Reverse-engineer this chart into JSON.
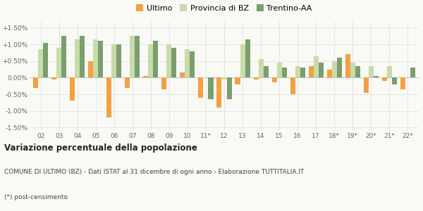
{
  "categories": [
    "02",
    "03",
    "04",
    "05",
    "06",
    "07",
    "08",
    "09",
    "10",
    "11*",
    "12",
    "13",
    "14",
    "15",
    "16",
    "17",
    "18*",
    "19*",
    "20*",
    "21*",
    "22*"
  ],
  "ultimo": [
    -0.3,
    -0.05,
    -0.7,
    0.5,
    -1.2,
    -0.3,
    0.05,
    -0.35,
    0.15,
    -0.6,
    -0.9,
    -0.2,
    -0.05,
    -0.15,
    -0.5,
    0.35,
    0.25,
    0.7,
    -0.45,
    -0.1,
    -0.35
  ],
  "provincia_bz": [
    0.85,
    0.9,
    1.15,
    1.15,
    1.0,
    1.25,
    1.0,
    1.0,
    0.85,
    0.0,
    -0.05,
    1.0,
    0.55,
    0.45,
    0.35,
    0.65,
    0.5,
    0.45,
    0.35,
    0.35,
    0.0
  ],
  "trentino_aa": [
    1.05,
    1.25,
    1.25,
    1.1,
    1.0,
    1.25,
    1.1,
    0.9,
    0.8,
    -0.65,
    -0.65,
    1.15,
    0.35,
    0.3,
    0.3,
    0.45,
    0.6,
    0.35,
    0.05,
    -0.2,
    0.3
  ],
  "color_ultimo": "#f4a040",
  "color_provincia": "#c8dba8",
  "color_trentino": "#7a9e6e",
  "title_bold": "Variazione percentuale della popolazione",
  "subtitle": "COMUNE DI ULTIMO (BZ) - Dati ISTAT al 31 dicembre di ogni anno - Elaborazione TUTTITALIA.IT",
  "footnote": "(*) post-censimento",
  "ylim": [
    -1.6,
    1.7
  ],
  "yticks": [
    -1.5,
    -1.0,
    -0.5,
    0.0,
    0.5,
    1.0,
    1.5
  ],
  "ytick_labels": [
    "-1.50%",
    "-1.00%",
    "-0.50%",
    "0.00%",
    "+0.50%",
    "+1.00%",
    "+1.50%"
  ],
  "legend_labels": [
    "Ultimo",
    "Provincia di BZ",
    "Trentino-AA"
  ],
  "bg_color": "#f9f9f6"
}
